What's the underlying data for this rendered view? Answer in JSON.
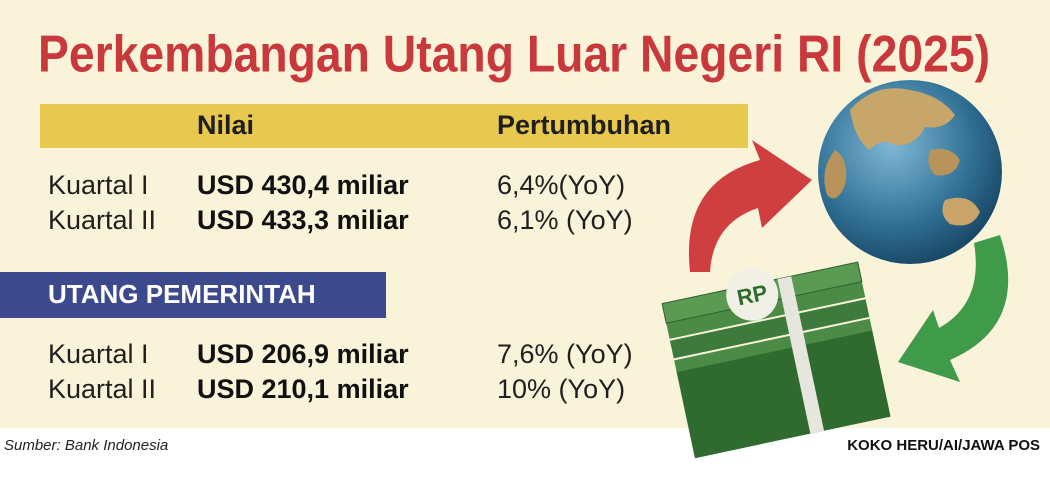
{
  "title": "Perkembangan Utang Luar Negeri RI (2025)",
  "table": {
    "header": [
      "Nilai",
      "Pertumbuhan"
    ],
    "rows": [
      [
        "Kuartal I",
        "USD 430,4 miliar",
        "6,4%(YoY)"
      ],
      [
        "Kuartal II",
        "USD 433,3 miliar",
        "6,1% (YoY)"
      ]
    ]
  },
  "section": {
    "title": "UTANG PEMERINTAH",
    "rows": [
      [
        "Kuartal I",
        "USD 206,9 miliar",
        "7,6% (YoY)"
      ],
      [
        "Kuartal II",
        "USD 210,1 miliar",
        "10% (YoY)"
      ]
    ]
  },
  "illustration": {
    "badge": "RP"
  },
  "source": "Sumber:  Bank Indonesia",
  "credit": "KOKO HERU/AI/JAWA POS"
}
